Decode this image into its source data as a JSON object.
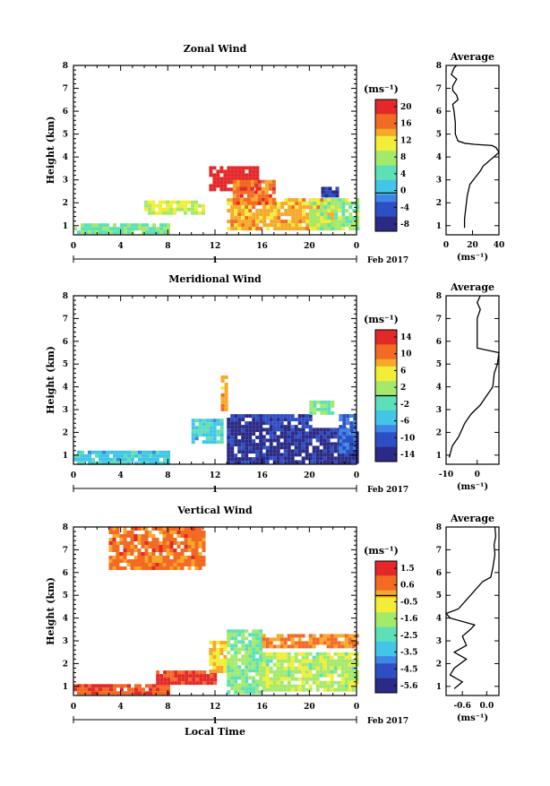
{
  "chart_data": [
    {
      "type": "heatmap",
      "title": "Zonal Wind",
      "ylabel": "Height (km)",
      "ylim": [
        0.6,
        8
      ],
      "xlim": [
        0,
        24
      ],
      "x_ticks": [
        "0",
        "4",
        "8",
        "12",
        "16",
        "20",
        "0"
      ],
      "y_ticks": [
        "1",
        "2",
        "3",
        "4",
        "5",
        "6",
        "7",
        "8"
      ],
      "colorbar": {
        "unit": "(ms⁻¹)",
        "ticks": [
          "20",
          "16",
          "12",
          "8",
          "4",
          "0",
          "-4",
          "-8"
        ],
        "range": [
          -9,
          22
        ]
      },
      "date_axis": {
        "day": "1",
        "month_year": "Feb 2017"
      },
      "patches": [
        {
          "x": [
            0,
            8
          ],
          "y": [
            0.7,
            1.1
          ],
          "v": 6
        },
        {
          "x": [
            6,
            11
          ],
          "y": [
            1.6,
            2.1
          ],
          "v": 10
        },
        {
          "x": [
            11.5,
            15.5
          ],
          "y": [
            2.6,
            3.6
          ],
          "v": 22
        },
        {
          "x": [
            13,
            22
          ],
          "y": [
            0.8,
            2.2
          ],
          "v": 14
        },
        {
          "x": [
            13.5,
            17
          ],
          "y": [
            2.0,
            3.0
          ],
          "v": 17
        },
        {
          "x": [
            20,
            24
          ],
          "y": [
            0.9,
            2.2
          ],
          "v": 8
        },
        {
          "x": [
            21,
            22.5
          ],
          "y": [
            2.3,
            2.7
          ],
          "v": -6
        }
      ],
      "average": {
        "title": "Average",
        "xlabel": "(ms⁻¹)",
        "x_ticks": [
          "0",
          "20",
          "40"
        ],
        "xlim": [
          0,
          40
        ],
        "y_ticks": [
          "1",
          "2",
          "3",
          "4",
          "5",
          "6",
          "7",
          "8"
        ],
        "ylim": [
          0.6,
          8
        ],
        "profile": [
          [
            14,
            0.9
          ],
          [
            14,
            1.3
          ],
          [
            15,
            1.8
          ],
          [
            16,
            2.3
          ],
          [
            18,
            2.8
          ],
          [
            22,
            3.1
          ],
          [
            26,
            3.4
          ],
          [
            28,
            3.6
          ],
          [
            32,
            3.8
          ],
          [
            36,
            4.0
          ],
          [
            40,
            4.2
          ],
          [
            38,
            4.4
          ],
          [
            35,
            4.5
          ],
          [
            22,
            4.55
          ],
          [
            14,
            4.6
          ],
          [
            9,
            4.7
          ],
          [
            7,
            5.0
          ],
          [
            7,
            5.5
          ],
          [
            6,
            6.0
          ],
          [
            5,
            6.3
          ],
          [
            9,
            6.5
          ],
          [
            8,
            6.7
          ],
          [
            5,
            6.9
          ],
          [
            5,
            7.1
          ],
          [
            8,
            7.4
          ],
          [
            4,
            7.6
          ],
          [
            6,
            7.9
          ],
          [
            8,
            8.0
          ]
        ]
      }
    },
    {
      "type": "heatmap",
      "title": "Meridional Wind",
      "ylabel": "Height (km)",
      "ylim": [
        0.6,
        8
      ],
      "xlim": [
        0,
        24
      ],
      "x_ticks": [
        "0",
        "4",
        "8",
        "12",
        "16",
        "20",
        "0"
      ],
      "y_ticks": [
        "1",
        "2",
        "3",
        "4",
        "5",
        "6",
        "7",
        "8"
      ],
      "colorbar": {
        "unit": "(ms⁻¹)",
        "ticks": [
          "14",
          "10",
          "6",
          "2",
          "-2",
          "-6",
          "-10",
          "-14"
        ],
        "range": [
          -16,
          16
        ]
      },
      "date_axis": {
        "day": "1",
        "month_year": "Feb 2017"
      },
      "patches": [
        {
          "x": [
            0,
            8
          ],
          "y": [
            0.7,
            1.2
          ],
          "v": -4
        },
        {
          "x": [
            10,
            12.5
          ],
          "y": [
            1.6,
            2.6
          ],
          "v": -4
        },
        {
          "x": [
            12.5,
            13
          ],
          "y": [
            3.0,
            4.5
          ],
          "v": 8
        },
        {
          "x": [
            13,
            16
          ],
          "y": [
            0.7,
            2.8
          ],
          "v": -14
        },
        {
          "x": [
            16,
            24
          ],
          "y": [
            0.7,
            2.2
          ],
          "v": -14
        },
        {
          "x": [
            16,
            20
          ],
          "y": [
            2.3,
            2.8
          ],
          "v": -12
        },
        {
          "x": [
            20,
            22
          ],
          "y": [
            2.8,
            3.4
          ],
          "v": 0
        },
        {
          "x": [
            22.5,
            24
          ],
          "y": [
            1.2,
            2.8
          ],
          "v": -10
        }
      ],
      "average": {
        "title": "Average",
        "xlabel": "(ms⁻¹)",
        "x_ticks": [
          "-10",
          "0"
        ],
        "xlim": [
          -10,
          7
        ],
        "y_ticks": [
          "1",
          "2",
          "3",
          "4",
          "5",
          "6",
          "7",
          "8"
        ],
        "ylim": [
          0.6,
          8
        ],
        "profile": [
          [
            -9,
            0.9
          ],
          [
            -8,
            1.4
          ],
          [
            -6,
            1.8
          ],
          [
            -4,
            2.4
          ],
          [
            -2,
            2.8
          ],
          [
            1,
            3.2
          ],
          [
            3,
            3.6
          ],
          [
            5,
            4.0
          ],
          [
            5.5,
            4.6
          ],
          [
            6.5,
            5.0
          ],
          [
            7,
            5.5
          ],
          [
            0,
            5.7
          ],
          [
            0,
            6.0
          ],
          [
            0,
            6.6
          ],
          [
            0,
            7.0
          ],
          [
            1,
            7.4
          ],
          [
            0,
            7.7
          ],
          [
            1,
            8.0
          ]
        ]
      }
    },
    {
      "type": "heatmap",
      "title": "Vertical Wind",
      "ylabel": "Height (km)",
      "xlabel": "Local Time",
      "ylim": [
        0.6,
        8
      ],
      "xlim": [
        0,
        24
      ],
      "x_ticks": [
        "0",
        "4",
        "8",
        "12",
        "16",
        "20",
        "0"
      ],
      "y_ticks": [
        "1",
        "2",
        "3",
        "4",
        "5",
        "6",
        "7",
        "8"
      ],
      "colorbar": {
        "unit": "(ms⁻¹)",
        "ticks": [
          "1.5",
          "0.6",
          "-0.5",
          "-1.6",
          "-2.5",
          "-3.5",
          "-4.5",
          "-5.6"
        ],
        "range": [
          -6.2,
          2.2
        ]
      },
      "date_axis": {
        "day": "1",
        "month_year": "Feb 2017"
      },
      "patches": [
        {
          "x": [
            0,
            8
          ],
          "y": [
            0.7,
            1.1
          ],
          "v": 1.2
        },
        {
          "x": [
            7,
            12
          ],
          "y": [
            1.2,
            1.7
          ],
          "v": 1.6
        },
        {
          "x": [
            11.5,
            13
          ],
          "y": [
            1.7,
            3.0
          ],
          "v": -0.3
        },
        {
          "x": [
            13,
            16
          ],
          "y": [
            0.8,
            3.5
          ],
          "v": -2.0
        },
        {
          "x": [
            16,
            24
          ],
          "y": [
            0.8,
            2.5
          ],
          "v": -1.4
        },
        {
          "x": [
            16,
            24
          ],
          "y": [
            2.7,
            3.3
          ],
          "v": 0.6
        },
        {
          "x": [
            3,
            11
          ],
          "y": [
            6.2,
            8.0
          ],
          "v": 0.8
        }
      ],
      "average": {
        "title": "Average",
        "xlabel": "(ms⁻¹)",
        "x_ticks": [
          "-0.6",
          "0.0"
        ],
        "xlim": [
          -1.0,
          0.3
        ],
        "y_ticks": [
          "1",
          "2",
          "3",
          "4",
          "5",
          "6",
          "7",
          "8"
        ],
        "ylim": [
          0.6,
          8
        ],
        "profile": [
          [
            -0.8,
            0.9
          ],
          [
            -0.6,
            1.2
          ],
          [
            -0.9,
            1.5
          ],
          [
            -0.8,
            1.8
          ],
          [
            -0.5,
            2.2
          ],
          [
            -0.8,
            2.5
          ],
          [
            -0.5,
            2.8
          ],
          [
            -0.6,
            3.2
          ],
          [
            -0.4,
            3.5
          ],
          [
            -0.3,
            3.7
          ],
          [
            -0.9,
            4.0
          ],
          [
            -1.0,
            4.2
          ],
          [
            -0.7,
            4.4
          ],
          [
            -0.5,
            4.8
          ],
          [
            -0.3,
            5.2
          ],
          [
            -0.1,
            5.6
          ],
          [
            0.1,
            5.8
          ],
          [
            0.15,
            6.2
          ],
          [
            0.2,
            6.8
          ],
          [
            0.18,
            7.2
          ],
          [
            0.22,
            7.6
          ],
          [
            0.2,
            8.0
          ]
        ]
      }
    }
  ],
  "colors": {
    "jet": [
      "#2b2a86",
      "#2e4fc4",
      "#3f86e6",
      "#42c6e8",
      "#5ee0b6",
      "#a4ea6a",
      "#f2ee38",
      "#f7a82a",
      "#f26a24",
      "#e4282a"
    ],
    "contour": "#000000"
  }
}
